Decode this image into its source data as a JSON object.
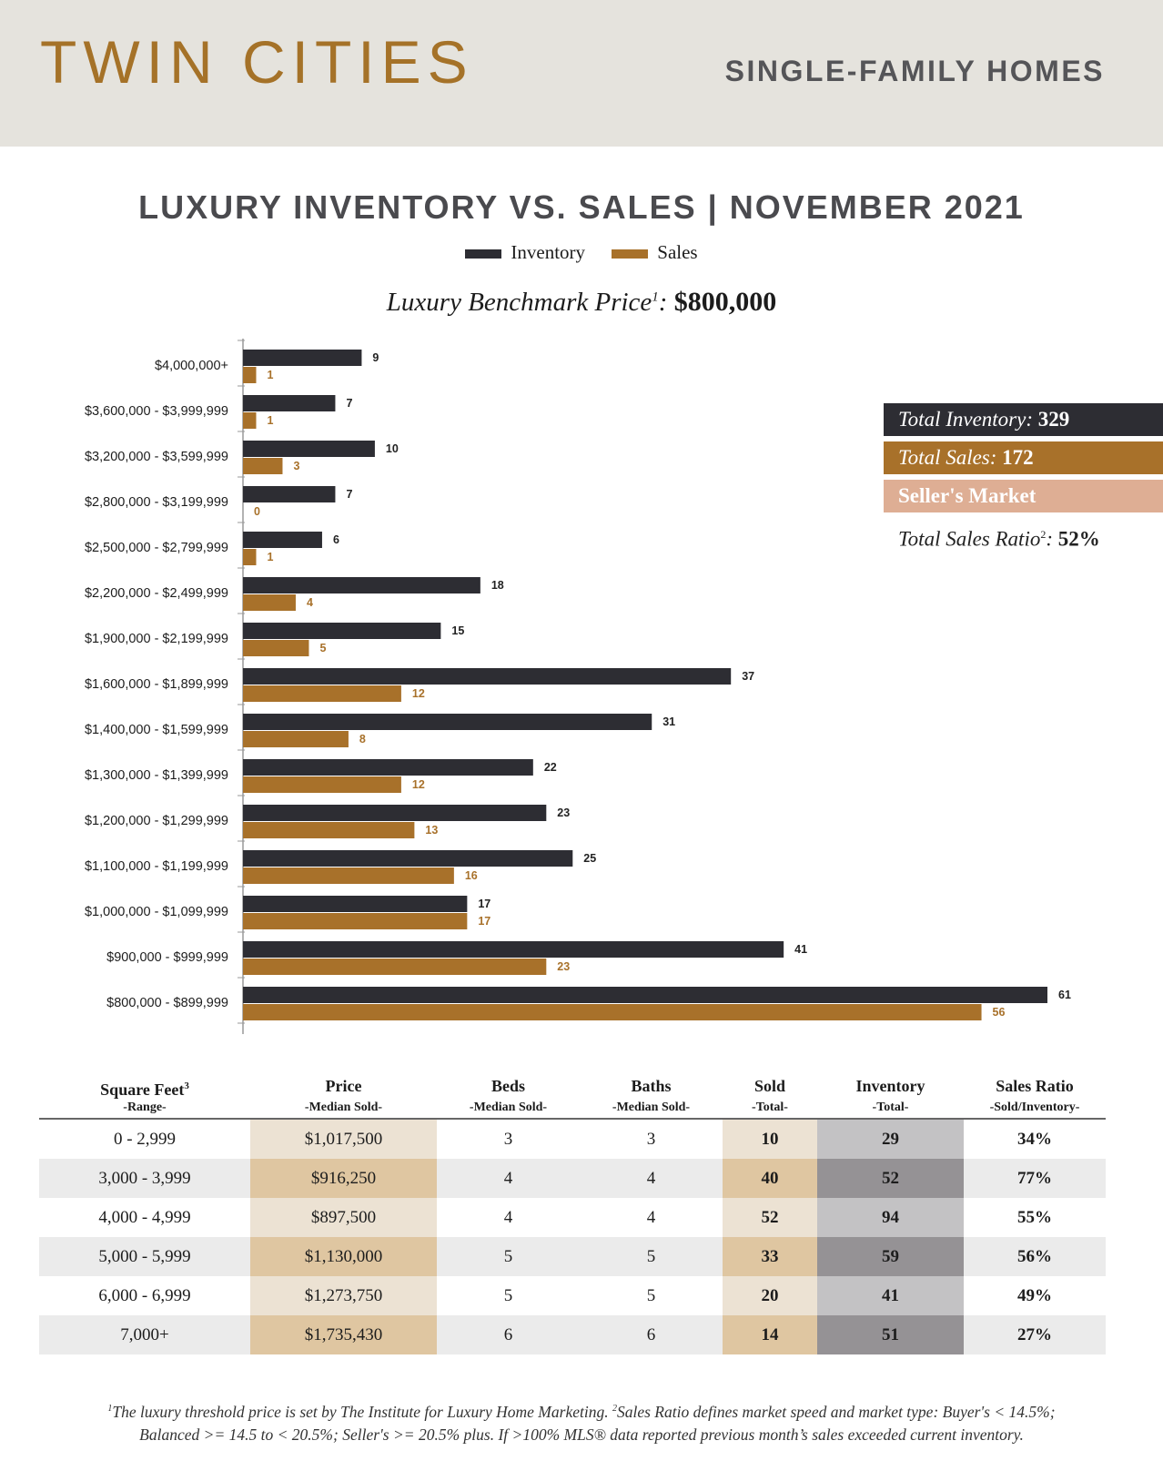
{
  "header": {
    "city": "TWIN CITIES",
    "category": "SINGLE-FAMILY HOMES"
  },
  "chart_data": {
    "type": "bar",
    "orientation": "horizontal",
    "title": "LUXURY INVENTORY VS. SALES | NOVEMBER 2021",
    "legend_position": "top-center",
    "grid": false,
    "categories": [
      "$4,000,000+",
      "$3,600,000 - $3,999,999",
      "$3,200,000 - $3,599,999",
      "$2,800,000 - $3,199,999",
      "$2,500,000 - $2,799,999",
      "$2,200,000 - $2,499,999",
      "$1,900,000 - $2,199,999",
      "$1,600,000 - $1,899,999",
      "$1,400,000 - $1,599,999",
      "$1,300,000 - $1,399,999",
      "$1,200,000 - $1,299,999",
      "$1,100,000 - $1,199,999",
      "$1,000,000 - $1,099,999",
      "$900,000 - $999,999",
      "$800,000 - $899,999"
    ],
    "series": [
      {
        "name": "Inventory",
        "color": "#2d2d33",
        "values": [
          9,
          7,
          10,
          7,
          6,
          18,
          15,
          37,
          31,
          22,
          23,
          25,
          17,
          41,
          61
        ]
      },
      {
        "name": "Sales",
        "color": "#a8712a",
        "values": [
          1,
          1,
          3,
          0,
          1,
          4,
          5,
          12,
          8,
          12,
          13,
          16,
          17,
          23,
          56
        ]
      }
    ],
    "xlim": [
      0,
      61
    ]
  },
  "benchmark": {
    "label": "Luxury Benchmark Price",
    "sup": "1",
    "value": "$800,000"
  },
  "stats": {
    "inventory_label": "Total Inventory:",
    "inventory_value": "329",
    "sales_label": "Total Sales:",
    "sales_value": "172",
    "market": "Seller's Market",
    "ratio_label": "Total Sales Ratio",
    "ratio_sup": "2",
    "ratio_value": "52%"
  },
  "table": {
    "headers": [
      {
        "title": "Square Feet",
        "sup": "3",
        "sub": "-Range-"
      },
      {
        "title": "Price",
        "sub": "-Median Sold-"
      },
      {
        "title": "Beds",
        "sub": "-Median Sold-"
      },
      {
        "title": "Baths",
        "sub": "-Median Sold-"
      },
      {
        "title": "Sold",
        "sub": "-Total-"
      },
      {
        "title": "Inventory",
        "sub": "-Total-"
      },
      {
        "title": "Sales Ratio",
        "sub": "-Sold/Inventory-"
      }
    ],
    "rows": [
      [
        "0 - 2,999",
        "$1,017,500",
        "3",
        "3",
        "10",
        "29",
        "34%"
      ],
      [
        "3,000 - 3,999",
        "$916,250",
        "4",
        "4",
        "40",
        "52",
        "77%"
      ],
      [
        "4,000 - 4,999",
        "$897,500",
        "4",
        "4",
        "52",
        "94",
        "55%"
      ],
      [
        "5,000 - 5,999",
        "$1,130,000",
        "5",
        "5",
        "33",
        "59",
        "56%"
      ],
      [
        "6,000 - 6,999",
        "$1,273,750",
        "5",
        "5",
        "20",
        "41",
        "49%"
      ],
      [
        "7,000+",
        "$1,735,430",
        "6",
        "6",
        "14",
        "51",
        "27%"
      ]
    ]
  },
  "footnote": {
    "line1_sup1": "1",
    "line1": "The luxury threshold price is set by The Institute for Luxury Home Marketing.",
    "line1_sup2": "2",
    "line1b": "Sales Ratio defines market speed and market type: Buyer's < 14.5%;",
    "line2": "Balanced >= 14.5 to < 20.5%; Seller's >= 20.5% plus. If >100% MLS® data reported previous month’s sales exceeded current inventory."
  }
}
